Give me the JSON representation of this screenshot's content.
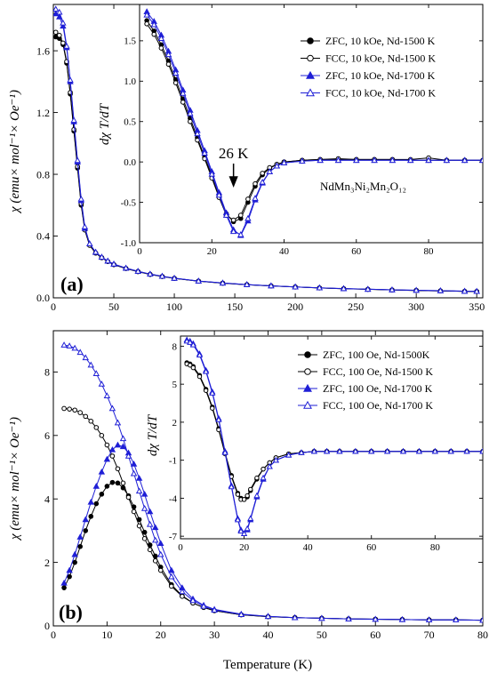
{
  "figure": {
    "shared_xlabel": "Temperature (K)"
  },
  "chart_data": [
    {
      "type": "line",
      "panel_label": "(a)",
      "xlabel": "",
      "ylabel": "χ (emu× mol⁻¹× Oe⁻¹)",
      "xlim": [
        0,
        355
      ],
      "ylim": [
        0,
        1.9
      ],
      "xticks": [
        0,
        50,
        100,
        150,
        200,
        250,
        300,
        350
      ],
      "yticks": [
        0.0,
        0.4,
        0.8,
        1.2,
        1.6
      ],
      "ytick_labels": [
        "0.0",
        "0.4",
        "0.8",
        "1.2",
        "1.6"
      ],
      "x": [
        2,
        5,
        8,
        11,
        14,
        17,
        20,
        23,
        26,
        30,
        35,
        40,
        45,
        50,
        60,
        70,
        80,
        90,
        100,
        120,
        140,
        160,
        180,
        200,
        220,
        240,
        260,
        280,
        300,
        320,
        340,
        350
      ],
      "series": [
        {
          "name": "ZFC, 10 kOe, Nd-1500 K",
          "color": "#000000",
          "marker": "filled-circle",
          "values": [
            1.69,
            1.68,
            1.64,
            1.52,
            1.32,
            1.08,
            0.84,
            0.6,
            0.44,
            0.34,
            0.29,
            0.26,
            0.235,
            0.215,
            0.19,
            0.17,
            0.152,
            0.138,
            0.126,
            0.108,
            0.095,
            0.085,
            0.077,
            0.07,
            0.064,
            0.059,
            0.055,
            0.051,
            0.048,
            0.045,
            0.042,
            0.041
          ]
        },
        {
          "name": "FCC, 10 kOe, Nd-1500 K",
          "color": "#000000",
          "marker": "open-circle",
          "values": [
            1.72,
            1.7,
            1.65,
            1.53,
            1.33,
            1.09,
            0.85,
            0.61,
            0.44,
            0.34,
            0.29,
            0.26,
            0.235,
            0.215,
            0.19,
            0.17,
            0.152,
            0.138,
            0.126,
            0.108,
            0.095,
            0.085,
            0.077,
            0.07,
            0.064,
            0.059,
            0.055,
            0.051,
            0.048,
            0.045,
            0.042,
            0.041
          ]
        },
        {
          "name": "ZFC, 10 kOe, Nd-1700 K",
          "color": "#1f1fd6",
          "marker": "filled-triangle",
          "values": [
            1.84,
            1.82,
            1.76,
            1.62,
            1.4,
            1.14,
            0.88,
            0.63,
            0.45,
            0.35,
            0.295,
            0.263,
            0.238,
            0.218,
            0.192,
            0.172,
            0.154,
            0.14,
            0.127,
            0.109,
            0.096,
            0.086,
            0.078,
            0.071,
            0.065,
            0.06,
            0.056,
            0.052,
            0.049,
            0.046,
            0.043,
            0.042
          ]
        },
        {
          "name": "FCC, 10 kOe, Nd-1700 K",
          "color": "#1f1fd6",
          "marker": "open-triangle",
          "values": [
            1.87,
            1.85,
            1.78,
            1.63,
            1.41,
            1.15,
            0.89,
            0.64,
            0.46,
            0.35,
            0.296,
            0.264,
            0.239,
            0.219,
            0.193,
            0.172,
            0.154,
            0.14,
            0.127,
            0.109,
            0.096,
            0.086,
            0.078,
            0.071,
            0.065,
            0.06,
            0.056,
            0.052,
            0.049,
            0.046,
            0.043,
            0.042
          ]
        }
      ],
      "inset": {
        "type": "line",
        "xlabel": "",
        "ylabel": "dχ T/dT",
        "xlim": [
          0,
          95
        ],
        "ylim": [
          -1.0,
          1.95
        ],
        "xticks": [
          0,
          20,
          40,
          60,
          80
        ],
        "yticks": [
          -1.0,
          -0.5,
          0.0,
          0.5,
          1.0,
          1.5
        ],
        "ytick_labels": [
          "-1.0",
          "-0.5",
          "0.0",
          "0.5",
          "1.0",
          "1.5"
        ],
        "annotation": "26 K",
        "annotation_x": 26,
        "compound_label": "NdMn₃Ni₂Mn₂O₁₂",
        "x": [
          2,
          4,
          6,
          8,
          10,
          12,
          14,
          16,
          18,
          20,
          22,
          24,
          26,
          28,
          30,
          32,
          34,
          36,
          38,
          40,
          45,
          50,
          55,
          60,
          65,
          70,
          75,
          80,
          85,
          90,
          95
        ],
        "series": [
          {
            "name": "ZFC, 10 kOe, Nd-1500 K",
            "values": [
              1.75,
              1.62,
              1.45,
              1.25,
              1.02,
              0.78,
              0.54,
              0.3,
              0.06,
              -0.17,
              -0.42,
              -0.64,
              -0.74,
              -0.7,
              -0.5,
              -0.3,
              -0.16,
              -0.08,
              -0.03,
              0.0,
              0.02,
              0.03,
              0.03,
              0.03,
              0.03,
              0.03,
              0.02,
              0.02,
              0.02,
              0.02,
              0.02
            ]
          },
          {
            "name": "FCC, 10 kOe, Nd-1500 K",
            "values": [
              1.71,
              1.58,
              1.41,
              1.21,
              0.98,
              0.74,
              0.5,
              0.27,
              0.04,
              -0.2,
              -0.44,
              -0.66,
              -0.72,
              -0.66,
              -0.46,
              -0.27,
              -0.14,
              -0.07,
              -0.03,
              0.0,
              0.02,
              0.03,
              0.04,
              0.03,
              0.03,
              0.03,
              0.03,
              0.05,
              0.02,
              0.02,
              0.02
            ]
          },
          {
            "name": "ZFC, 10 kOe, Nd-1700 K",
            "values": [
              1.86,
              1.74,
              1.57,
              1.37,
              1.14,
              0.89,
              0.64,
              0.39,
              0.14,
              -0.12,
              -0.38,
              -0.63,
              -0.84,
              -0.91,
              -0.73,
              -0.47,
              -0.26,
              -0.12,
              -0.05,
              -0.01,
              0.01,
              0.02,
              0.02,
              0.02,
              0.02,
              0.02,
              0.02,
              0.02,
              0.02,
              0.02,
              0.02
            ]
          },
          {
            "name": "FCC, 10 kOe, Nd-1700 K",
            "values": [
              1.82,
              1.7,
              1.53,
              1.33,
              1.1,
              0.85,
              0.6,
              0.35,
              0.11,
              -0.15,
              -0.41,
              -0.66,
              -0.86,
              -0.9,
              -0.7,
              -0.45,
              -0.25,
              -0.12,
              -0.05,
              -0.01,
              0.01,
              0.02,
              0.02,
              0.02,
              0.02,
              0.02,
              0.02,
              0.02,
              0.02,
              0.02,
              0.02
            ]
          }
        ]
      }
    },
    {
      "type": "line",
      "panel_label": "(b)",
      "xlabel": "Temperature (K)",
      "ylabel": "χ (emu× mol⁻¹× Oe⁻¹)",
      "xlim": [
        0,
        80
      ],
      "ylim": [
        0,
        9.3
      ],
      "xticks": [
        0,
        10,
        20,
        30,
        40,
        50,
        60,
        70,
        80
      ],
      "yticks": [
        0,
        2,
        4,
        6,
        8
      ],
      "ytick_labels": [
        "0",
        "2",
        "4",
        "6",
        "8"
      ],
      "x": [
        2,
        3,
        4,
        5,
        6,
        7,
        8,
        9,
        10,
        11,
        12,
        13,
        14,
        15,
        16,
        17,
        18,
        19,
        20,
        22,
        24,
        26,
        28,
        30,
        35,
        40,
        45,
        50,
        55,
        60,
        65,
        70,
        75,
        80
      ],
      "series": [
        {
          "name": "ZFC, 100 Oe, Nd-1500K",
          "color": "#000000",
          "marker": "filled-circle",
          "values": [
            1.2,
            1.55,
            2.0,
            2.5,
            3.0,
            3.45,
            3.85,
            4.15,
            4.4,
            4.52,
            4.5,
            4.35,
            4.1,
            3.75,
            3.35,
            2.95,
            2.55,
            2.2,
            1.85,
            1.3,
            0.95,
            0.72,
            0.58,
            0.48,
            0.35,
            0.29,
            0.26,
            0.24,
            0.22,
            0.21,
            0.2,
            0.19,
            0.19,
            0.18
          ]
        },
        {
          "name": "FCC, 100 Oe, Nd-1500 K",
          "color": "#000000",
          "marker": "open-circle",
          "values": [
            6.85,
            6.83,
            6.8,
            6.72,
            6.6,
            6.45,
            6.25,
            6.0,
            5.7,
            5.35,
            4.95,
            4.5,
            4.05,
            3.6,
            3.15,
            2.75,
            2.4,
            2.05,
            1.75,
            1.25,
            0.93,
            0.72,
            0.58,
            0.48,
            0.35,
            0.29,
            0.26,
            0.24,
            0.22,
            0.21,
            0.2,
            0.19,
            0.19,
            0.18
          ]
        },
        {
          "name": "ZFC, 100 Oe, Nd-1700 K",
          "color": "#1f1fd6",
          "marker": "filled-triangle",
          "values": [
            1.35,
            1.75,
            2.25,
            2.8,
            3.35,
            3.9,
            4.4,
            4.85,
            5.25,
            5.55,
            5.7,
            5.65,
            5.45,
            5.1,
            4.65,
            4.15,
            3.6,
            3.1,
            2.6,
            1.75,
            1.2,
            0.85,
            0.65,
            0.52,
            0.37,
            0.3,
            0.26,
            0.24,
            0.22,
            0.21,
            0.2,
            0.19,
            0.19,
            0.18
          ]
        },
        {
          "name": "FCC, 100 Oe, Nd-1700 K",
          "color": "#1f1fd6",
          "marker": "open-triangle",
          "values": [
            8.85,
            8.82,
            8.75,
            8.62,
            8.45,
            8.22,
            7.95,
            7.62,
            7.25,
            6.85,
            6.4,
            5.9,
            5.35,
            4.8,
            4.25,
            3.7,
            3.2,
            2.7,
            2.25,
            1.55,
            1.08,
            0.8,
            0.62,
            0.5,
            0.36,
            0.3,
            0.26,
            0.24,
            0.22,
            0.21,
            0.2,
            0.19,
            0.19,
            0.18
          ]
        }
      ],
      "inset": {
        "type": "line",
        "xlabel": "",
        "ylabel": "dχ T/dT",
        "xlim": [
          0,
          95
        ],
        "ylim": [
          -7.2,
          8.8
        ],
        "xticks": [
          0,
          20,
          40,
          60,
          80
        ],
        "yticks": [
          -7,
          -4,
          -1,
          2,
          5,
          8
        ],
        "ytick_labels": [
          "-7",
          "-4",
          "-1",
          "2",
          "5",
          "8"
        ],
        "x": [
          2,
          3,
          4,
          6,
          8,
          10,
          12,
          14,
          16,
          18,
          19,
          20,
          21,
          22,
          24,
          26,
          28,
          30,
          34,
          38,
          42,
          46,
          50,
          55,
          60,
          65,
          70,
          75,
          80,
          85,
          90,
          95
        ],
        "series": [
          {
            "name": "ZFC, 100 Oe, Nd-1500K",
            "values": [
              6.7,
              6.6,
              6.4,
              5.7,
              4.6,
              3.2,
              1.5,
              -0.4,
              -2.2,
              -3.6,
              -4.0,
              -4.1,
              -3.9,
              -3.4,
              -2.5,
              -1.7,
              -1.2,
              -0.8,
              -0.5,
              -0.4,
              -0.3,
              -0.3,
              -0.3,
              -0.3,
              -0.3,
              -0.3,
              -0.3,
              -0.3,
              -0.3,
              -0.3,
              -0.3,
              -0.3
            ]
          },
          {
            "name": "FCC, 100 Oe, Nd-1500 K",
            "values": [
              6.6,
              6.5,
              6.3,
              5.6,
              4.5,
              3.1,
              1.4,
              -0.5,
              -2.3,
              -3.7,
              -4.1,
              -4.1,
              -3.8,
              -3.3,
              -2.4,
              -1.7,
              -1.2,
              -0.8,
              -0.5,
              -0.4,
              -0.3,
              -0.3,
              -0.3,
              -0.3,
              -0.3,
              -0.3,
              -0.3,
              -0.3,
              -0.3,
              -0.3,
              -0.3,
              -0.3
            ]
          },
          {
            "name": "ZFC, 100 Oe, Nd-1700 K",
            "values": [
              8.5,
              8.4,
              8.2,
              7.4,
              6.1,
              4.4,
              2.3,
              -0.3,
              -3.0,
              -5.6,
              -6.5,
              -6.8,
              -6.5,
              -5.7,
              -3.9,
              -2.5,
              -1.5,
              -1.0,
              -0.6,
              -0.4,
              -0.3,
              -0.3,
              -0.3,
              -0.3,
              -0.3,
              -0.3,
              -0.3,
              -0.3,
              -0.3,
              -0.3,
              -0.3,
              -0.3
            ]
          },
          {
            "name": "FCC, 100 Oe, Nd-1700 K",
            "values": [
              8.4,
              8.3,
              8.1,
              7.3,
              6.0,
              4.3,
              2.2,
              -0.4,
              -3.1,
              -5.7,
              -6.6,
              -6.8,
              -6.4,
              -5.6,
              -3.8,
              -2.4,
              -1.5,
              -1.0,
              -0.6,
              -0.4,
              -0.3,
              -0.3,
              -0.3,
              -0.3,
              -0.3,
              -0.3,
              -0.3,
              -0.3,
              -0.3,
              -0.3,
              -0.3,
              -0.3
            ]
          }
        ]
      }
    }
  ]
}
